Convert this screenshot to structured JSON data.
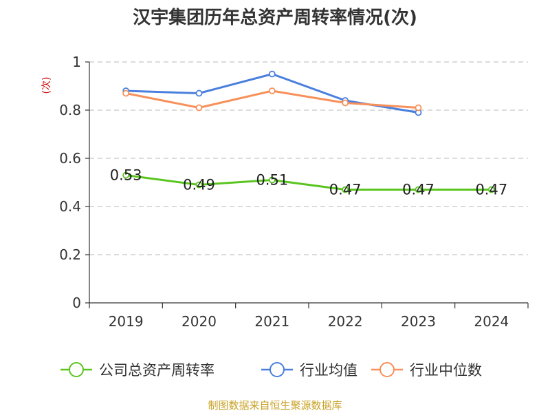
{
  "chart_data": {
    "type": "line",
    "title": "汉宇集团历年总资产周转率情况(次)",
    "unit_label": "(次)",
    "categories": [
      "2019",
      "2020",
      "2021",
      "2022",
      "2023",
      "2024"
    ],
    "ylim": [
      0,
      1
    ],
    "yticks": [
      0,
      0.2,
      0.4,
      0.6,
      0.8,
      1
    ],
    "ytick_labels": [
      "0",
      "0.2",
      "0.4",
      "0.6",
      "0.8",
      "1"
    ],
    "grid": true,
    "legend_position": "bottom",
    "series": [
      {
        "name": "公司总资产周转率",
        "color": "#5ac520",
        "show_labels": true,
        "values": [
          0.53,
          0.49,
          0.51,
          0.47,
          0.47,
          0.47
        ]
      },
      {
        "name": "行业均值",
        "color": "#4a7fde",
        "show_labels": false,
        "values": [
          0.88,
          0.87,
          0.95,
          0.84,
          0.79,
          null
        ]
      },
      {
        "name": "行业中位数",
        "color": "#f7905a",
        "show_labels": false,
        "values": [
          0.87,
          0.81,
          0.88,
          0.83,
          0.81,
          null
        ]
      }
    ],
    "source": "制图数据来自恒生聚源数据库"
  }
}
